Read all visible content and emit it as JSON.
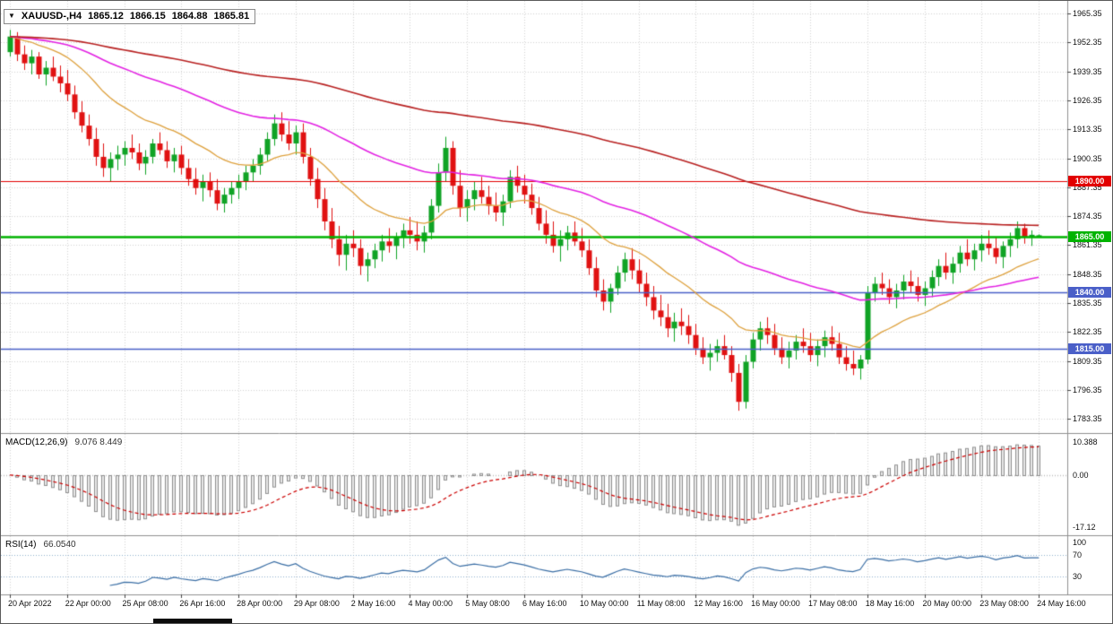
{
  "info_box": {
    "symbol_timeframe": "XAUUSD-,H4",
    "open": "1865.12",
    "high": "1866.15",
    "low": "1864.88",
    "close": "1865.81"
  },
  "chart_data": {
    "type": "candlestick",
    "title": "XAUUSD H4 candlestick chart with moving averages, horizontal levels, MACD and RSI",
    "price_axis": {
      "min": 1777.0,
      "max": 1971.0,
      "labels": [
        "1965.35",
        "1952.35",
        "1939.35",
        "1926.35",
        "1913.35",
        "1900.35",
        "1887.35",
        "1874.35",
        "1861.35",
        "1848.35",
        "1835.35",
        "1822.35",
        "1809.35",
        "1796.35",
        "1783.35"
      ]
    },
    "time_axis": {
      "bars_per_label": 8,
      "labels": [
        "20 Apr 2022",
        "22 Apr 00:00",
        "25 Apr 08:00",
        "26 Apr 16:00",
        "28 Apr 00:00",
        "29 Apr 08:00",
        "2 May 16:00",
        "4 May 00:00",
        "5 May 08:00",
        "6 May 16:00",
        "10 May 00:00",
        "11 May 08:00",
        "12 May 16:00",
        "16 May 00:00",
        "17 May 08:00",
        "18 May 16:00",
        "20 May 00:00",
        "23 May 08:00",
        "24 May 16:00"
      ]
    },
    "hlines": [
      {
        "price": 1890.0,
        "label": "1890.00",
        "color": "#e20000",
        "width": 1.2
      },
      {
        "price": 1865.0,
        "label": "1865.00",
        "color": "#00b300",
        "width": 2.6
      },
      {
        "price": 1840.0,
        "label": "1840.00",
        "color": "#4a5fc8",
        "width": 1.4
      },
      {
        "price": 1815.0,
        "label": "1815.00",
        "color": "#4a5fc8",
        "width": 1.4
      }
    ],
    "moving_averages": [
      {
        "name": "fast-ma",
        "period": 20,
        "color": "#dea13d",
        "width": 1.3
      },
      {
        "name": "medium-ma",
        "period": 60,
        "color": "#e322e3",
        "width": 1.6
      },
      {
        "name": "slow-ma",
        "period": 160,
        "color": "#b82020",
        "width": 1.6
      }
    ],
    "indicators": {
      "macd": {
        "label": "MACD(12,26,9)",
        "values": "9.076 8.449",
        "fast": 12,
        "slow": 26,
        "signal": 9,
        "axis_labels": {
          "max": "10.388",
          "zero": "0.00",
          "min": "-17.12"
        }
      },
      "rsi": {
        "label": "RSI(14)",
        "value": "66.0540",
        "period": 14,
        "levels": [
          70,
          30
        ],
        "axis_labels": {
          "top": "100",
          "upper": "70",
          "lower": "30"
        }
      }
    },
    "colors": {
      "bull": "#10a325",
      "bear": "#e01212",
      "grid": "#d4d4d4",
      "separator": "#8f8f8f",
      "macd_hist_fill": "#e8e8e8",
      "macd_hist_stroke": "#909090",
      "macd_signal": "#cc0000",
      "rsi_line": "#3a6ea5",
      "rsi_levels": "#8fb0cf",
      "axis_text": "#111111"
    },
    "candles": [
      [
        1948,
        1958,
        1946,
        1955
      ],
      [
        1955,
        1957,
        1944,
        1947
      ],
      [
        1947,
        1951,
        1940,
        1943
      ],
      [
        1943,
        1949,
        1938,
        1946
      ],
      [
        1946,
        1948,
        1936,
        1938
      ],
      [
        1938,
        1944,
        1933,
        1941
      ],
      [
        1941,
        1946,
        1935,
        1937
      ],
      [
        1937,
        1942,
        1930,
        1934
      ],
      [
        1934,
        1940,
        1926,
        1929
      ],
      [
        1929,
        1933,
        1918,
        1921
      ],
      [
        1921,
        1926,
        1912,
        1915
      ],
      [
        1915,
        1920,
        1906,
        1909
      ],
      [
        1909,
        1914,
        1897,
        1901
      ],
      [
        1901,
        1907,
        1892,
        1896
      ],
      [
        1896,
        1903,
        1890,
        1900
      ],
      [
        1900,
        1906,
        1895,
        1902
      ],
      [
        1902,
        1908,
        1897,
        1905
      ],
      [
        1905,
        1911,
        1900,
        1903
      ],
      [
        1903,
        1907,
        1895,
        1898
      ],
      [
        1898,
        1904,
        1893,
        1901
      ],
      [
        1901,
        1909,
        1898,
        1907
      ],
      [
        1907,
        1912,
        1902,
        1904
      ],
      [
        1904,
        1908,
        1896,
        1899
      ],
      [
        1899,
        1905,
        1894,
        1902
      ],
      [
        1902,
        1906,
        1893,
        1896
      ],
      [
        1896,
        1900,
        1888,
        1891
      ],
      [
        1891,
        1896,
        1884,
        1887
      ],
      [
        1887,
        1893,
        1881,
        1890
      ],
      [
        1890,
        1894,
        1883,
        1886
      ],
      [
        1886,
        1891,
        1877,
        1880
      ],
      [
        1880,
        1887,
        1876,
        1884
      ],
      [
        1884,
        1890,
        1880,
        1887
      ],
      [
        1887,
        1893,
        1882,
        1890
      ],
      [
        1890,
        1897,
        1886,
        1894
      ],
      [
        1894,
        1900,
        1890,
        1897
      ],
      [
        1897,
        1905,
        1893,
        1902
      ],
      [
        1902,
        1912,
        1899,
        1909
      ],
      [
        1909,
        1920,
        1906,
        1916
      ],
      [
        1916,
        1921,
        1908,
        1911
      ],
      [
        1911,
        1917,
        1904,
        1907
      ],
      [
        1907,
        1915,
        1902,
        1912
      ],
      [
        1912,
        1916,
        1898,
        1901
      ],
      [
        1901,
        1905,
        1888,
        1891
      ],
      [
        1891,
        1896,
        1878,
        1882
      ],
      [
        1882,
        1887,
        1868,
        1872
      ],
      [
        1872,
        1878,
        1860,
        1864
      ],
      [
        1864,
        1870,
        1852,
        1857
      ],
      [
        1857,
        1866,
        1850,
        1862
      ],
      [
        1862,
        1868,
        1856,
        1860
      ],
      [
        1860,
        1864,
        1848,
        1852
      ],
      [
        1852,
        1858,
        1845,
        1855
      ],
      [
        1855,
        1862,
        1851,
        1859
      ],
      [
        1859,
        1866,
        1854,
        1863
      ],
      [
        1863,
        1869,
        1858,
        1861
      ],
      [
        1861,
        1867,
        1855,
        1865
      ],
      [
        1865,
        1871,
        1860,
        1868
      ],
      [
        1868,
        1874,
        1862,
        1866
      ],
      [
        1866,
        1872,
        1859,
        1863
      ],
      [
        1863,
        1870,
        1858,
        1867
      ],
      [
        1867,
        1882,
        1864,
        1879
      ],
      [
        1879,
        1898,
        1876,
        1894
      ],
      [
        1894,
        1910,
        1890,
        1905
      ],
      [
        1905,
        1908,
        1884,
        1888
      ],
      [
        1888,
        1895,
        1874,
        1878
      ],
      [
        1878,
        1886,
        1872,
        1882
      ],
      [
        1882,
        1890,
        1877,
        1886
      ],
      [
        1886,
        1892,
        1880,
        1883
      ],
      [
        1883,
        1888,
        1875,
        1879
      ],
      [
        1879,
        1885,
        1872,
        1876
      ],
      [
        1876,
        1884,
        1870,
        1881
      ],
      [
        1881,
        1895,
        1878,
        1892
      ],
      [
        1892,
        1897,
        1885,
        1888
      ],
      [
        1888,
        1893,
        1880,
        1884
      ],
      [
        1884,
        1889,
        1875,
        1878
      ],
      [
        1878,
        1883,
        1868,
        1871
      ],
      [
        1871,
        1877,
        1862,
        1866
      ],
      [
        1866,
        1872,
        1858,
        1861
      ],
      [
        1861,
        1868,
        1854,
        1864
      ],
      [
        1864,
        1870,
        1859,
        1867
      ],
      [
        1867,
        1872,
        1861,
        1863
      ],
      [
        1863,
        1869,
        1856,
        1859
      ],
      [
        1859,
        1864,
        1848,
        1851
      ],
      [
        1851,
        1856,
        1838,
        1841
      ],
      [
        1841,
        1846,
        1832,
        1836
      ],
      [
        1836,
        1844,
        1831,
        1842
      ],
      [
        1842,
        1852,
        1839,
        1849
      ],
      [
        1849,
        1858,
        1845,
        1855
      ],
      [
        1855,
        1860,
        1846,
        1850
      ],
      [
        1850,
        1855,
        1840,
        1844
      ],
      [
        1844,
        1849,
        1834,
        1838
      ],
      [
        1838,
        1843,
        1828,
        1832
      ],
      [
        1832,
        1839,
        1825,
        1829
      ],
      [
        1829,
        1835,
        1820,
        1824
      ],
      [
        1824,
        1831,
        1818,
        1827
      ],
      [
        1827,
        1833,
        1821,
        1825
      ],
      [
        1825,
        1830,
        1817,
        1821
      ],
      [
        1821,
        1826,
        1812,
        1815
      ],
      [
        1815,
        1820,
        1808,
        1811
      ],
      [
        1811,
        1817,
        1805,
        1813
      ],
      [
        1813,
        1819,
        1809,
        1816
      ],
      [
        1816,
        1821,
        1810,
        1812
      ],
      [
        1812,
        1816,
        1800,
        1804
      ],
      [
        1804,
        1808,
        1787,
        1791
      ],
      [
        1791,
        1812,
        1788,
        1809
      ],
      [
        1809,
        1822,
        1806,
        1819
      ],
      [
        1819,
        1827,
        1814,
        1824
      ],
      [
        1824,
        1829,
        1817,
        1821
      ],
      [
        1821,
        1826,
        1812,
        1815
      ],
      [
        1815,
        1820,
        1808,
        1811
      ],
      [
        1811,
        1818,
        1806,
        1814
      ],
      [
        1814,
        1821,
        1810,
        1818
      ],
      [
        1818,
        1824,
        1813,
        1816
      ],
      [
        1816,
        1822,
        1809,
        1812
      ],
      [
        1812,
        1819,
        1807,
        1816
      ],
      [
        1816,
        1823,
        1811,
        1820
      ],
      [
        1820,
        1825,
        1814,
        1817
      ],
      [
        1817,
        1822,
        1808,
        1811
      ],
      [
        1811,
        1816,
        1805,
        1808
      ],
      [
        1808,
        1814,
        1803,
        1806
      ],
      [
        1806,
        1812,
        1801,
        1810
      ],
      [
        1810,
        1843,
        1808,
        1840
      ],
      [
        1840,
        1847,
        1836,
        1844
      ],
      [
        1844,
        1849,
        1839,
        1842
      ],
      [
        1842,
        1846,
        1835,
        1838
      ],
      [
        1838,
        1844,
        1833,
        1841
      ],
      [
        1841,
        1848,
        1837,
        1845
      ],
      [
        1845,
        1850,
        1840,
        1843
      ],
      [
        1843,
        1847,
        1836,
        1839
      ],
      [
        1839,
        1845,
        1834,
        1842
      ],
      [
        1842,
        1850,
        1838,
        1847
      ],
      [
        1847,
        1855,
        1843,
        1852
      ],
      [
        1852,
        1858,
        1846,
        1849
      ],
      [
        1849,
        1856,
        1844,
        1853
      ],
      [
        1853,
        1861,
        1849,
        1858
      ],
      [
        1858,
        1864,
        1852,
        1855
      ],
      [
        1855,
        1862,
        1850,
        1859
      ],
      [
        1859,
        1866,
        1854,
        1862
      ],
      [
        1862,
        1868,
        1857,
        1860
      ],
      [
        1860,
        1865,
        1853,
        1856
      ],
      [
        1856,
        1863,
        1851,
        1861
      ],
      [
        1861,
        1867,
        1856,
        1864
      ],
      [
        1864,
        1872,
        1860,
        1869
      ],
      [
        1869,
        1871,
        1862,
        1865
      ],
      [
        1865,
        1868,
        1861,
        1866
      ],
      [
        1865.1,
        1866.2,
        1864.9,
        1865.8
      ]
    ]
  }
}
